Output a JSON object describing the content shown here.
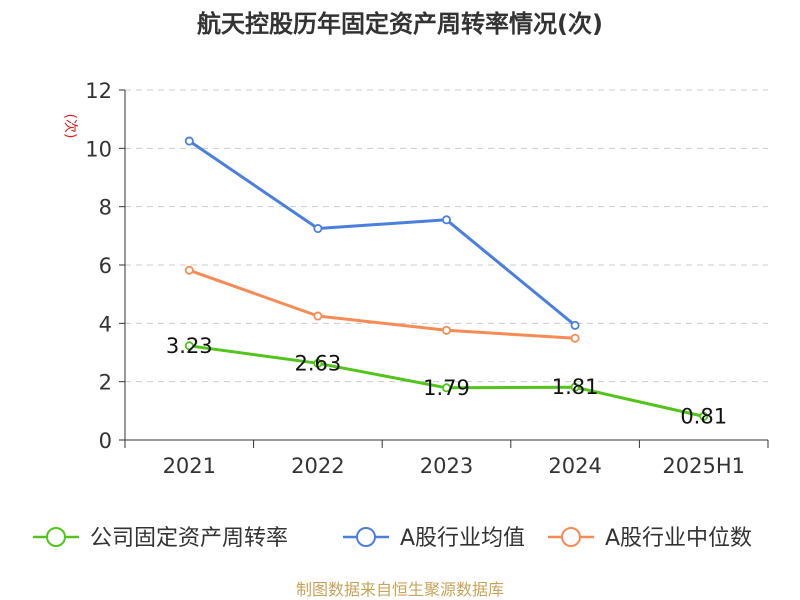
{
  "title": "航天控股历年固定资产周转率情况(次)",
  "source": "制图数据来自恒生聚源数据库",
  "chart_data": {
    "type": "line",
    "title": "航天控股历年固定资产周转率情况(次)",
    "xlabel": "",
    "ylabel": "(次)",
    "ylim": [
      0,
      12
    ],
    "yticks": [
      0,
      2,
      4,
      6,
      8,
      10,
      12
    ],
    "grid": true,
    "legend_position": "bottom",
    "categories": [
      "2021",
      "2022",
      "2023",
      "2024",
      "2025H1"
    ],
    "series": [
      {
        "name": "公司固定资产周转率",
        "color": "#52c41a",
        "values": [
          3.23,
          2.63,
          1.79,
          1.81,
          0.81
        ],
        "labels": [
          "3.23",
          "2.63",
          "1.79",
          "1.81",
          "0.81"
        ],
        "show_labels": true
      },
      {
        "name": "A股行业均值",
        "color": "#4a7fdc",
        "values": [
          10.25,
          7.25,
          7.55,
          3.93,
          null
        ],
        "show_labels": false
      },
      {
        "name": "A股行业中位数",
        "color": "#f78b55",
        "values": [
          5.82,
          4.25,
          3.76,
          3.49,
          null
        ],
        "show_labels": false
      }
    ]
  }
}
